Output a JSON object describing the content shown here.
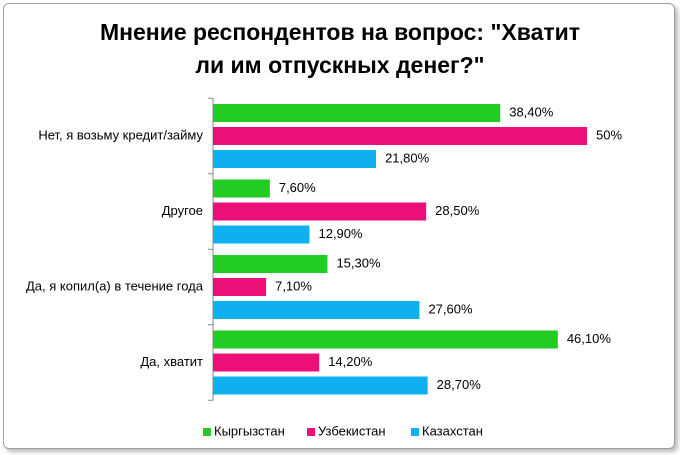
{
  "chart_data": {
    "type": "bar",
    "orientation": "horizontal",
    "title": "Мнение респондентов на вопрос: \"Хватит\nли им отпускных денег?\"",
    "categories": [
      "Нет, я возьму кредит/займу",
      "Другое",
      "Да, я копил(а) в течение года",
      "Да, хватит"
    ],
    "series": [
      {
        "name": "Кыргызстан",
        "color": "#22cc22",
        "values": [
          38.4,
          7.6,
          15.3,
          46.1
        ],
        "value_labels": [
          "38,40%",
          "7,60%",
          "15,30%",
          "46,10%"
        ]
      },
      {
        "name": "Узбекистан",
        "color": "#ec0f78",
        "values": [
          50,
          28.5,
          7.1,
          14.2
        ],
        "value_labels": [
          "50%",
          "28,50%",
          "7,10%",
          "14,20%"
        ]
      },
      {
        "name": "Казахстан",
        "color": "#0fb0f0",
        "values": [
          21.8,
          12.9,
          27.6,
          28.7
        ],
        "value_labels": [
          "21,80%",
          "12,90%",
          "27,60%",
          "28,70%"
        ]
      }
    ],
    "legend": "bottom"
  }
}
